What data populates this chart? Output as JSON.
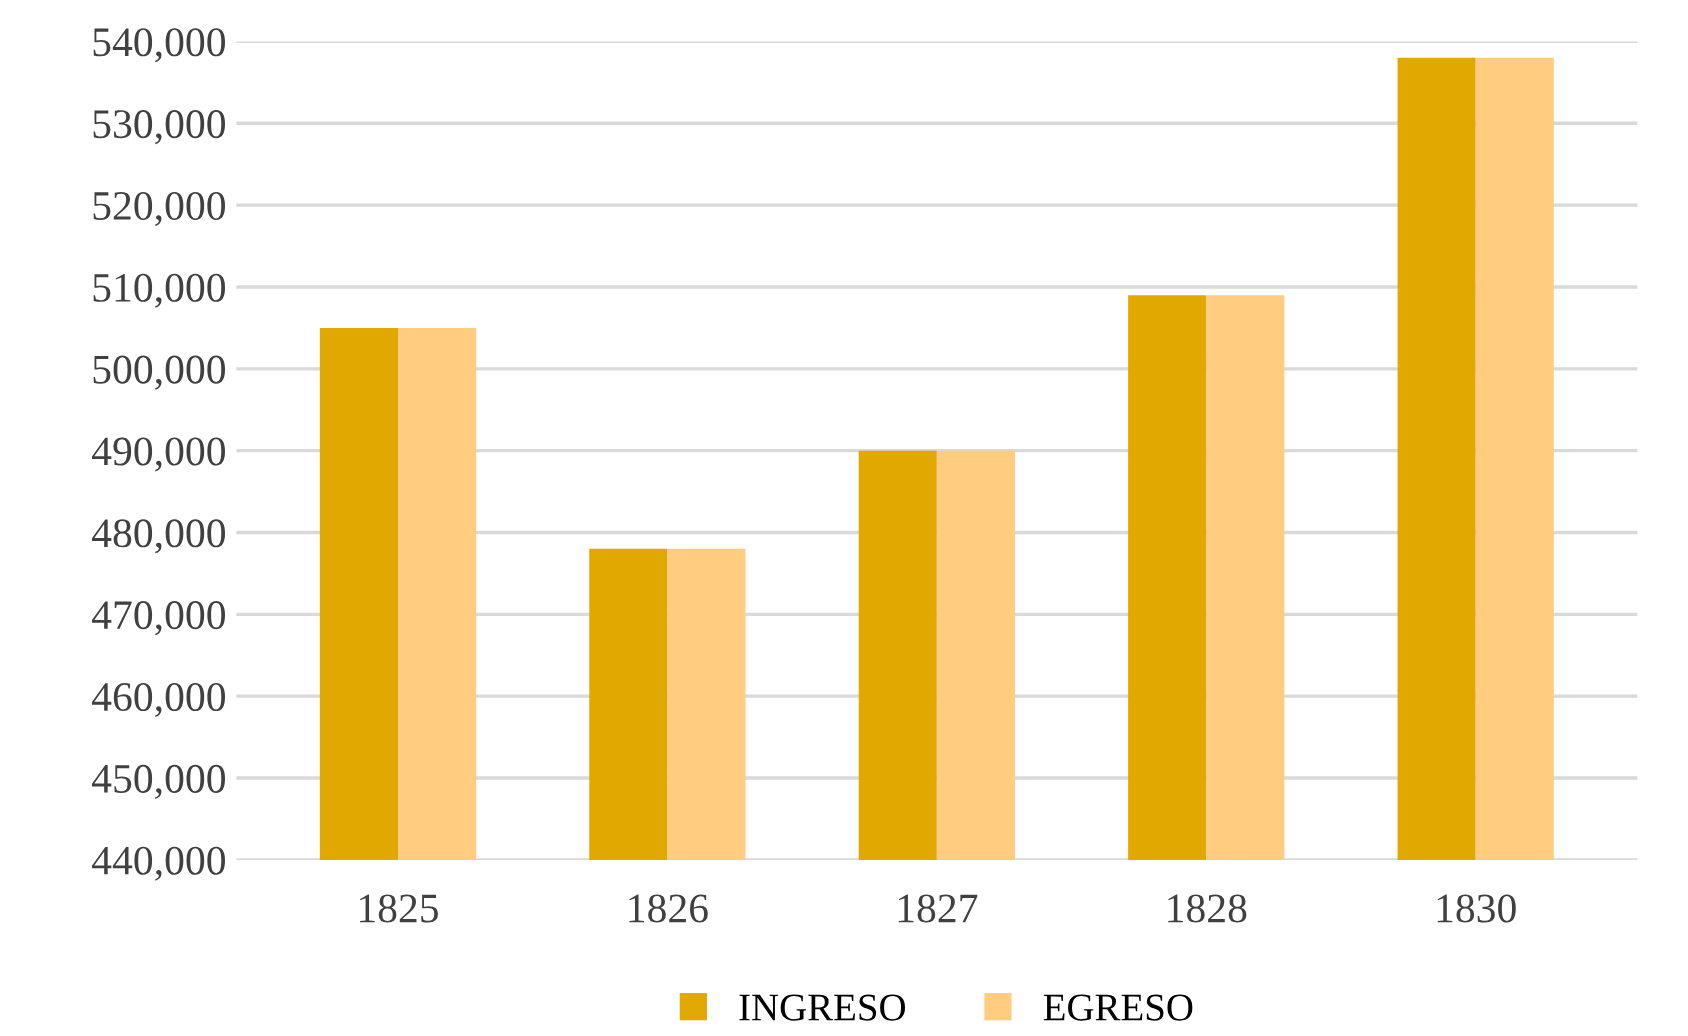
{
  "chart_data": {
    "type": "bar",
    "categories": [
      "1825",
      "1826",
      "1827",
      "1828",
      "1830"
    ],
    "series": [
      {
        "name": "INGRESO",
        "color": "#e0a800",
        "values": [
          505000,
          478000,
          490000,
          509000,
          538000
        ]
      },
      {
        "name": "EGRESO",
        "color": "#ffcc80",
        "values": [
          505000,
          478000,
          490000,
          509000,
          538000
        ]
      }
    ],
    "ylim": [
      440000,
      540000
    ],
    "yticks": [
      {
        "value": 440000,
        "label": "440,000"
      },
      {
        "value": 450000,
        "label": "450,000"
      },
      {
        "value": 460000,
        "label": "460,000"
      },
      {
        "value": 470000,
        "label": "470,000"
      },
      {
        "value": 480000,
        "label": "480,000"
      },
      {
        "value": 490000,
        "label": "490,000"
      },
      {
        "value": 500000,
        "label": "500,000"
      },
      {
        "value": 510000,
        "label": "510,000"
      },
      {
        "value": 520000,
        "label": "520,000"
      },
      {
        "value": 530000,
        "label": "530,000"
      },
      {
        "value": 540000,
        "label": "540,000"
      }
    ],
    "grid": "y",
    "legend": "bottom"
  }
}
